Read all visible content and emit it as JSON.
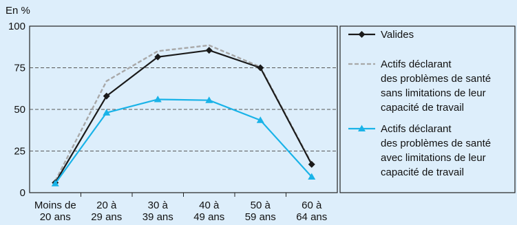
{
  "chart_data": {
    "type": "line",
    "ylabel": "En %",
    "ylim": [
      0,
      100
    ],
    "yticks": [
      0,
      25,
      50,
      75,
      100
    ],
    "grid": "horizontal-dashed",
    "legend_position": "right",
    "categories": [
      [
        "Moins de",
        "20 ans"
      ],
      [
        "20 à",
        "29 ans"
      ],
      [
        "30 à",
        "39 ans"
      ],
      [
        "40 à",
        "49 ans"
      ],
      [
        "50 à",
        "59 ans"
      ],
      [
        "60 à",
        "64 ans"
      ]
    ],
    "series": [
      {
        "name": [
          "Valides"
        ],
        "color": "#1a1a1a",
        "style": "solid",
        "marker": "diamond",
        "values": [
          6,
          58,
          81.5,
          85.5,
          75,
          17
        ]
      },
      {
        "name": [
          "Actifs déclarant",
          "des problèmes de santé",
          "sans limitations de leur",
          "capacité de travail"
        ],
        "color": "#a8a8a8",
        "style": "dashed",
        "marker": "none",
        "values": [
          7,
          67,
          85,
          88.5,
          75.5,
          17.5
        ]
      },
      {
        "name": [
          "Actifs déclarant",
          "des problèmes de santé",
          "avec limitations de leur",
          "capacité de travail"
        ],
        "color": "#19b3e8",
        "style": "solid",
        "marker": "triangle",
        "values": [
          5.5,
          48,
          56,
          55.5,
          43.5,
          9.5
        ]
      }
    ]
  }
}
